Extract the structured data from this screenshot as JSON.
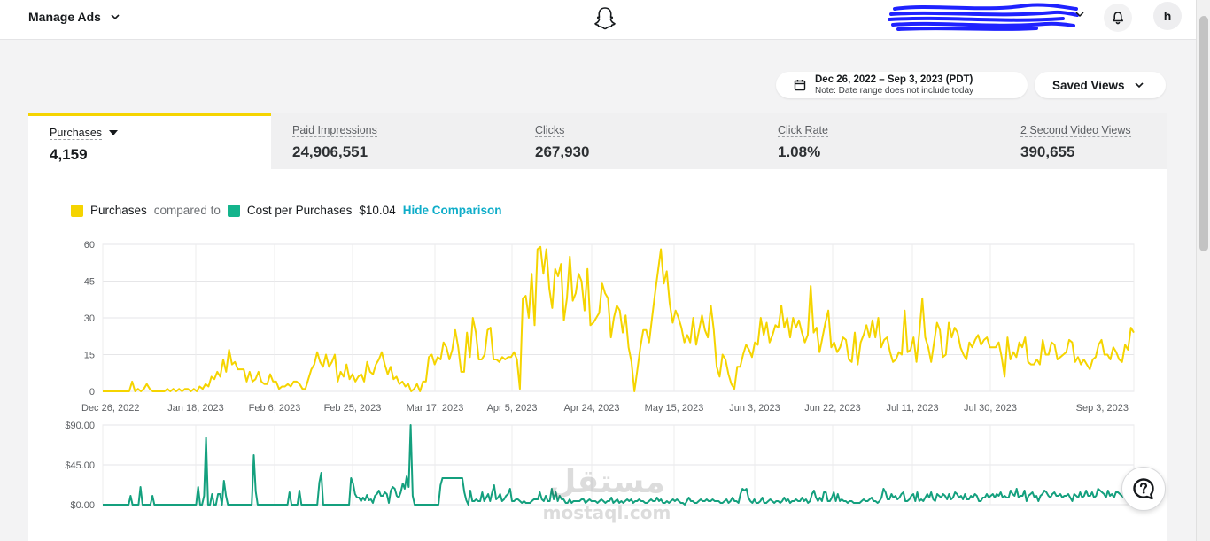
{
  "header": {
    "title": "Manage Ads",
    "avatar_initial": "h"
  },
  "date_range": {
    "range": "Dec 26, 2022 – Sep 3, 2023 (PDT)",
    "note": "Note: Date range does not include today"
  },
  "saved_views_label": "Saved Views",
  "metrics": [
    {
      "label": "Purchases",
      "value": "4,159"
    },
    {
      "label": "Paid Impressions",
      "value": "24,906,551"
    },
    {
      "label": "Clicks",
      "value": "267,930"
    },
    {
      "label": "Click Rate",
      "value": "1.08%"
    },
    {
      "label": "2 Second Video Views",
      "value": "390,655"
    }
  ],
  "legend": {
    "primary": "Purchases",
    "compared_to": "compared to",
    "secondary": "Cost per Purchases",
    "secondary_value": "$10.04",
    "hide_comparison": "Hide Comparison"
  },
  "watermark": {
    "arabic": "مستقل",
    "latin": "mostaql.com"
  },
  "colors": {
    "purchases": "#f5d400",
    "cost": "#14a07e",
    "link": "#0fadc9"
  },
  "chart_data": [
    {
      "type": "line",
      "series": [
        {
          "name": "Purchases",
          "values": [
            0,
            0,
            0,
            0,
            0,
            0,
            0,
            0,
            0,
            0,
            4,
            0,
            1,
            0,
            1,
            3,
            1,
            0,
            0,
            0,
            0,
            0,
            1,
            0,
            1,
            0,
            1,
            0,
            1,
            1,
            0,
            1,
            0,
            2,
            1,
            3,
            2,
            6,
            5,
            8,
            6,
            13,
            8,
            17,
            11,
            12,
            9,
            9,
            9,
            4,
            8,
            4,
            5,
            8,
            4,
            3,
            3,
            7,
            4,
            4,
            1,
            2,
            2,
            3,
            2,
            4,
            4,
            3,
            1,
            1,
            5,
            9,
            11,
            16,
            12,
            10,
            15,
            10,
            12,
            15,
            4,
            8,
            6,
            11,
            5,
            7,
            4,
            6,
            7,
            4,
            12,
            8,
            7,
            11,
            13,
            16,
            11,
            7,
            10,
            5,
            6,
            3,
            4,
            2,
            3,
            0,
            1,
            3,
            0,
            4,
            4,
            14,
            15,
            11,
            14,
            13,
            20,
            18,
            13,
            17,
            25,
            18,
            8,
            8,
            24,
            14,
            30,
            24,
            13,
            13,
            15,
            25,
            26,
            13,
            13,
            12,
            14,
            13,
            14,
            14,
            16,
            13,
            1,
            38,
            39,
            30,
            48,
            27,
            58,
            59,
            48,
            58,
            42,
            34,
            50,
            47,
            52,
            29,
            38,
            55,
            37,
            40,
            48,
            45,
            33,
            50,
            27,
            28,
            30,
            32,
            44,
            40,
            38,
            22,
            30,
            35,
            33,
            24,
            31,
            18,
            12,
            0,
            9,
            18,
            25,
            25,
            20,
            30,
            40,
            49,
            58,
            44,
            49,
            36,
            28,
            33,
            30,
            26,
            20,
            23,
            20,
            30,
            19,
            25,
            31,
            25,
            22,
            35,
            25,
            10,
            6,
            15,
            13,
            7,
            3,
            1,
            10,
            10,
            15,
            19,
            17,
            14,
            20,
            19,
            30,
            23,
            28,
            20,
            23,
            27,
            26,
            35,
            26,
            30,
            22,
            30,
            26,
            29,
            24,
            20,
            23,
            43,
            24,
            26,
            16,
            22,
            28,
            33,
            18,
            20,
            16,
            18,
            22,
            21,
            13,
            12,
            24,
            11,
            20,
            23,
            27,
            22,
            29,
            22,
            30,
            18,
            21,
            22,
            16,
            12,
            13,
            16,
            15,
            33,
            16,
            17,
            22,
            12,
            24,
            38,
            22,
            18,
            12,
            20,
            28,
            25,
            14,
            15,
            28,
            22,
            26,
            24,
            18,
            15,
            13,
            20,
            18,
            21,
            23,
            19,
            21,
            22,
            18,
            18,
            18,
            20,
            14,
            6,
            22,
            13,
            16,
            14,
            20,
            18,
            22,
            12,
            11,
            11,
            13,
            11,
            21,
            15,
            15,
            20,
            19,
            13,
            14,
            15,
            16,
            21,
            20,
            12,
            14,
            11,
            13,
            11,
            9,
            13,
            14,
            19,
            21,
            15,
            15,
            13,
            18,
            16,
            13,
            12,
            19,
            17,
            26,
            24
          ]
        }
      ],
      "x_tick_labels": [
        "Dec 26, 2022",
        "Jan 18, 2023",
        "Feb 6, 2023",
        "Feb 25, 2023",
        "Mar 17, 2023",
        "Apr 5, 2023",
        "Apr 24, 2023",
        "May 15, 2023",
        "Jun 3, 2023",
        "Jun 22, 2023",
        "Jul 11, 2023",
        "Jul 30, 2023",
        "Sep 3, 2023"
      ],
      "y_ticks": [
        0,
        15,
        30,
        45,
        60
      ],
      "ylim": [
        0,
        60
      ],
      "grid": true
    },
    {
      "type": "line",
      "series": [
        {
          "name": "Cost per Purchases",
          "values": [
            0,
            0,
            0,
            0,
            0,
            0,
            0,
            0,
            0,
            0,
            0,
            0,
            0,
            0,
            10,
            0,
            0,
            0,
            0,
            20,
            0,
            0,
            0,
            0,
            0,
            10,
            0,
            0,
            0,
            0,
            0,
            0,
            0,
            0,
            0,
            0,
            0,
            0,
            0,
            0,
            0,
            0,
            0,
            0,
            0,
            0,
            0,
            0,
            20,
            0,
            0,
            10,
            76,
            0,
            0,
            12,
            0,
            0,
            12,
            12,
            0,
            27,
            10,
            0,
            0,
            0,
            0,
            0,
            0,
            0,
            0,
            0,
            0,
            0,
            0,
            0,
            56,
            15,
            0,
            0,
            0,
            0,
            0,
            0,
            0,
            0,
            0,
            0,
            0,
            0,
            0,
            0,
            0,
            0,
            14,
            0,
            0,
            0,
            0,
            16,
            0,
            0,
            0,
            0,
            0,
            0,
            0,
            0,
            0,
            25,
            36,
            0,
            0,
            0,
            0,
            0,
            0,
            0,
            0,
            0,
            0,
            0,
            0,
            0,
            0,
            30,
            24,
            12,
            8,
            8,
            4,
            8,
            5,
            11,
            5,
            6,
            2,
            10,
            12,
            16,
            10,
            10,
            14,
            12,
            2,
            16,
            20,
            18,
            10,
            8,
            14,
            24,
            18,
            32,
            20,
            92,
            10,
            0,
            0,
            0,
            0,
            0,
            0,
            0,
            0,
            0,
            0,
            0,
            0,
            0,
            22,
            30,
            30,
            30,
            30,
            30,
            30,
            30,
            30,
            30,
            30,
            30,
            14,
            5,
            0,
            16,
            4,
            4,
            6,
            4,
            4,
            14,
            4,
            8,
            12,
            4,
            14,
            22,
            6,
            8,
            12,
            4,
            6,
            10,
            12,
            18,
            4,
            4,
            6,
            6,
            4,
            2,
            4,
            2,
            2,
            2,
            4,
            6,
            6,
            6,
            14,
            6,
            4,
            10,
            4,
            4,
            18,
            6,
            14,
            4,
            10,
            6,
            6,
            2,
            2,
            6,
            2,
            4,
            4,
            4,
            4,
            6,
            6,
            2,
            4,
            6,
            4,
            4,
            4,
            2,
            4,
            6,
            4,
            2,
            4,
            4,
            8,
            2,
            4,
            6,
            2,
            4,
            2,
            4,
            6,
            4,
            6,
            2,
            4,
            4,
            6,
            4,
            4,
            2,
            2,
            4,
            6,
            4,
            4,
            8,
            4,
            6,
            2,
            2,
            4,
            2,
            4,
            6,
            4,
            6,
            4,
            2,
            2,
            0,
            4,
            8,
            4,
            4,
            2,
            2,
            4,
            6,
            4,
            4,
            6,
            4,
            4,
            6,
            4,
            4,
            4,
            2,
            2,
            4,
            6,
            2,
            4,
            8,
            4,
            4,
            2,
            12,
            18,
            16,
            18,
            8,
            4,
            2,
            6,
            2,
            2,
            4,
            8,
            2,
            2,
            4,
            6,
            4,
            2,
            4,
            4,
            2,
            4,
            8,
            4,
            6,
            2,
            4,
            4,
            6,
            4,
            4,
            8,
            4,
            6,
            2,
            4,
            12,
            16,
            8,
            4,
            8,
            4,
            14,
            14,
            4,
            4,
            8,
            14,
            4,
            12,
            4,
            6,
            4,
            4,
            2,
            4,
            4,
            2,
            2,
            2,
            2,
            4,
            6,
            4,
            4,
            6,
            8,
            4,
            4,
            2,
            4,
            8,
            18,
            14,
            6,
            6,
            12,
            8,
            10,
            6,
            8,
            12,
            14,
            4,
            4,
            6,
            10,
            12,
            4,
            14,
            4,
            6,
            4,
            8,
            12,
            8,
            14,
            6,
            4,
            12,
            10,
            8,
            12,
            10,
            6,
            12,
            6,
            8,
            14,
            12,
            8,
            10,
            6,
            12,
            6,
            6,
            10,
            8,
            12,
            10,
            4,
            4,
            8,
            8,
            12,
            8,
            10,
            12,
            8,
            12,
            10,
            14,
            8,
            10,
            8,
            8,
            16,
            12,
            10,
            18,
            8,
            10,
            10,
            16,
            4,
            10,
            12,
            14,
            8,
            10,
            4,
            10,
            12,
            16,
            14,
            10,
            8,
            12,
            14,
            10,
            10,
            12,
            8,
            10,
            10,
            12,
            8,
            4,
            12,
            10,
            8,
            14,
            8,
            10,
            16,
            10,
            10,
            14,
            8,
            10,
            18,
            16,
            14,
            12,
            8,
            16,
            10,
            12,
            8,
            14,
            14,
            12,
            10,
            8,
            10,
            12,
            8,
            14,
            16
          ]
        }
      ],
      "y_tick_labels": [
        "$0.00",
        "$45.00",
        "$90.00"
      ],
      "ylim": [
        0,
        90
      ],
      "grid": true
    }
  ]
}
